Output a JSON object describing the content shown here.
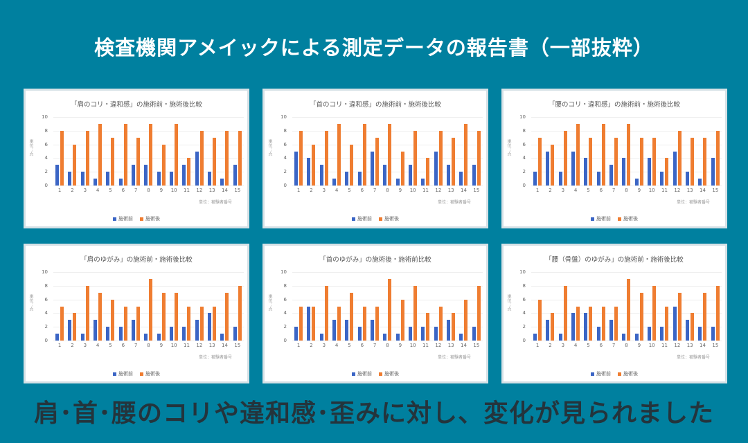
{
  "page": {
    "title": "検査機関アメイックによる測定データの報告書（一部抜粋）",
    "footer": "肩･首･腰のコリや違和感･歪みに対し、変化が見られました"
  },
  "colors": {
    "background": "#00809f",
    "before": "#3b65c5",
    "after": "#ef7d31"
  },
  "chart_data": [
    {
      "type": "bar",
      "title": "「肩のコリ・違和感」の施術前・施術後比較",
      "xlabel": "単位：被験者番号",
      "ylabel": "単位：点",
      "ylim": [
        0,
        10
      ],
      "yticks": [
        0,
        2,
        4,
        6,
        8,
        10
      ],
      "grid": true,
      "legend_position": "bottom",
      "categories": [
        "1",
        "2",
        "3",
        "4",
        "5",
        "6",
        "7",
        "8",
        "9",
        "10",
        "11",
        "12",
        "13",
        "14",
        "15"
      ],
      "series": [
        {
          "name": "施術前",
          "values": [
            3,
            2,
            2,
            1,
            2,
            1,
            3,
            3,
            2,
            2,
            3,
            5,
            2,
            1,
            3
          ]
        },
        {
          "name": "施術後",
          "values": [
            8,
            6,
            8,
            9,
            7,
            9,
            7,
            9,
            6,
            9,
            4,
            8,
            7,
            8,
            8
          ]
        }
      ]
    },
    {
      "type": "bar",
      "title": "「首のコリ・違和感」の施術前・施術後比較",
      "xlabel": "単位：被験者番号",
      "ylabel": "単位：点",
      "ylim": [
        0,
        10
      ],
      "yticks": [
        0,
        2,
        4,
        6,
        8,
        10
      ],
      "grid": true,
      "legend_position": "bottom",
      "categories": [
        "1",
        "2",
        "3",
        "4",
        "5",
        "6",
        "7",
        "8",
        "9",
        "10",
        "11",
        "12",
        "13",
        "14",
        "15"
      ],
      "series": [
        {
          "name": "施術前",
          "values": [
            5,
            4,
            3,
            1,
            2,
            2,
            5,
            3,
            1,
            3,
            1,
            5,
            3,
            2,
            3
          ]
        },
        {
          "name": "施術後",
          "values": [
            8,
            6,
            8,
            9,
            6,
            9,
            7,
            9,
            5,
            8,
            4,
            8,
            7,
            9,
            8
          ]
        }
      ]
    },
    {
      "type": "bar",
      "title": "「腰のコリ・違和感」の施術前・施術後比較",
      "xlabel": "単位：被験者番号",
      "ylabel": "単位：点",
      "ylim": [
        0,
        10
      ],
      "yticks": [
        0,
        2,
        4,
        6,
        8,
        10
      ],
      "grid": true,
      "legend_position": "bottom",
      "categories": [
        "1",
        "2",
        "3",
        "4",
        "5",
        "6",
        "7",
        "8",
        "9",
        "10",
        "11",
        "12",
        "13",
        "14",
        "15"
      ],
      "series": [
        {
          "name": "施術前",
          "values": [
            2,
            5,
            2,
            5,
            4,
            2,
            3,
            4,
            1,
            4,
            2,
            5,
            2,
            1,
            4
          ]
        },
        {
          "name": "施術後",
          "values": [
            7,
            6,
            8,
            9,
            7,
            9,
            7,
            9,
            7,
            7,
            4,
            8,
            7,
            7,
            8
          ]
        }
      ]
    },
    {
      "type": "bar",
      "title": "「肩のゆがみ」の施術前・施術後比較",
      "xlabel": "単位：被験者番号",
      "ylabel": "単位：点",
      "ylim": [
        0,
        10
      ],
      "yticks": [
        0,
        2,
        4,
        6,
        8,
        10
      ],
      "grid": true,
      "legend_position": "bottom",
      "categories": [
        "1",
        "2",
        "3",
        "4",
        "5",
        "6",
        "7",
        "8",
        "9",
        "10",
        "11",
        "12",
        "13",
        "14",
        "15"
      ],
      "series": [
        {
          "name": "施術前",
          "values": [
            1,
            3,
            1,
            3,
            2,
            2,
            3,
            1,
            1,
            2,
            2,
            3,
            4,
            1,
            2
          ]
        },
        {
          "name": "施術後",
          "values": [
            5,
            4,
            8,
            7,
            6,
            5,
            5,
            9,
            7,
            7,
            5,
            5,
            5,
            7,
            8
          ]
        }
      ]
    },
    {
      "type": "bar",
      "title": "「首のゆがみ」の施術後・施術前比較",
      "xlabel": "単位：被験者番号",
      "ylabel": "単位：点",
      "ylim": [
        0,
        10
      ],
      "yticks": [
        0,
        2,
        4,
        6,
        8,
        10
      ],
      "grid": true,
      "legend_position": "bottom",
      "categories": [
        "1",
        "2",
        "3",
        "4",
        "5",
        "6",
        "7",
        "8",
        "9",
        "10",
        "11",
        "12",
        "13",
        "14",
        "15"
      ],
      "series": [
        {
          "name": "施術前",
          "values": [
            2,
            5,
            1,
            3,
            3,
            2,
            3,
            1,
            1,
            2,
            2,
            2,
            3,
            1,
            2
          ]
        },
        {
          "name": "施術後",
          "values": [
            5,
            5,
            8,
            5,
            7,
            5,
            5,
            9,
            6,
            8,
            4,
            5,
            4,
            6,
            8
          ]
        }
      ]
    },
    {
      "type": "bar",
      "title": "「腰（骨盤）のゆがみ」の施術前・施術後比較",
      "xlabel": "単位：被験者番号",
      "ylabel": "単位：点",
      "ylim": [
        0,
        10
      ],
      "yticks": [
        0,
        2,
        4,
        6,
        8,
        10
      ],
      "grid": true,
      "legend_position": "bottom",
      "categories": [
        "1",
        "2",
        "3",
        "4",
        "5",
        "6",
        "7",
        "8",
        "9",
        "10",
        "11",
        "12",
        "13",
        "14",
        "15"
      ],
      "series": [
        {
          "name": "施術前",
          "values": [
            1,
            3,
            1,
            4,
            4,
            2,
            3,
            1,
            1,
            2,
            2,
            5,
            3,
            2,
            2
          ]
        },
        {
          "name": "施術後",
          "values": [
            6,
            4,
            8,
            5,
            5,
            5,
            5,
            9,
            7,
            8,
            5,
            7,
            4,
            7,
            8
          ]
        }
      ]
    }
  ]
}
